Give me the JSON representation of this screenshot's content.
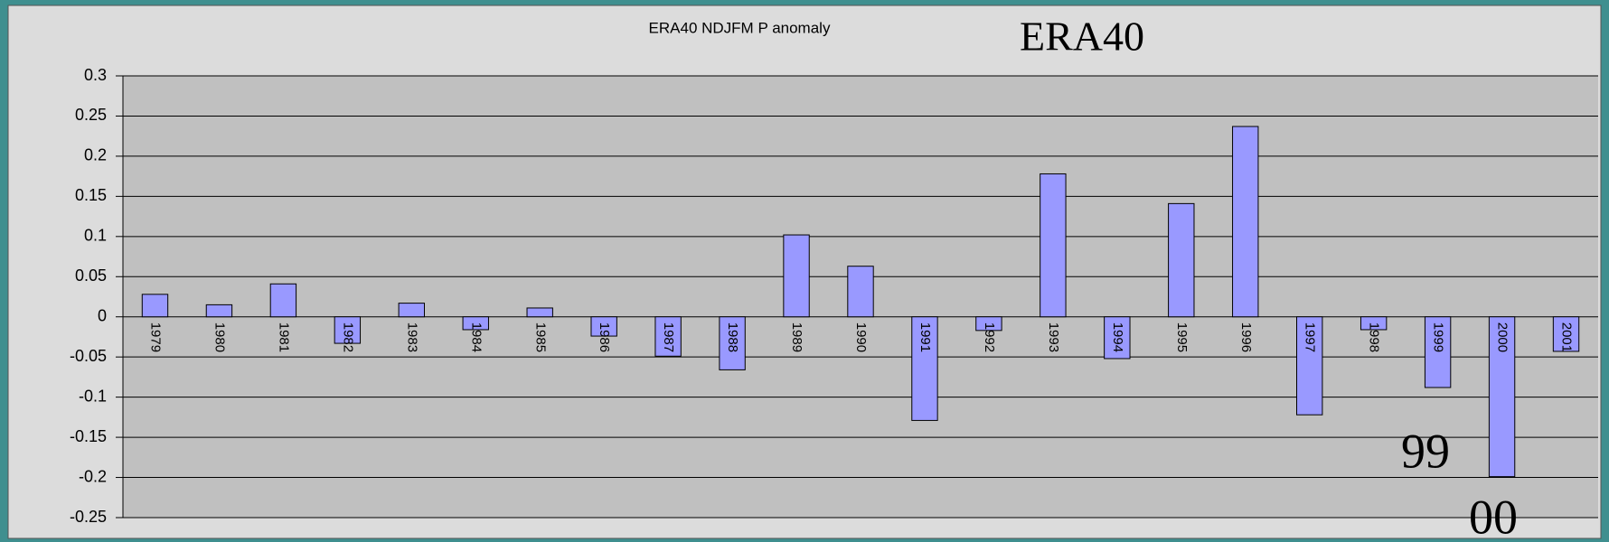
{
  "chart_data": {
    "type": "bar",
    "title": "ERA40 NDJFM P anomaly",
    "annotations": [
      "ERA40",
      "99",
      "00"
    ],
    "categories": [
      "1979",
      "1980",
      "1981",
      "1982",
      "1983",
      "1984",
      "1985",
      "1986",
      "1987",
      "1988",
      "1989",
      "1990",
      "1991",
      "1992",
      "1993",
      "1994",
      "1995",
      "1996",
      "1997",
      "1998",
      "1999",
      "2000",
      "2001"
    ],
    "values": [
      0.028,
      0.015,
      0.041,
      -0.033,
      0.017,
      -0.016,
      0.011,
      -0.024,
      -0.049,
      -0.066,
      0.102,
      0.063,
      -0.129,
      -0.017,
      0.178,
      -0.052,
      0.141,
      0.237,
      -0.122,
      -0.016,
      -0.088,
      -0.199,
      -0.043
    ],
    "color": "#9999ff",
    "ylim": [
      -0.25,
      0.3
    ],
    "yticks": [
      -0.25,
      -0.2,
      -0.15,
      -0.1,
      -0.05,
      0,
      0.05,
      0.1,
      0.15,
      0.2,
      0.25,
      0.3
    ],
    "grid": true
  }
}
